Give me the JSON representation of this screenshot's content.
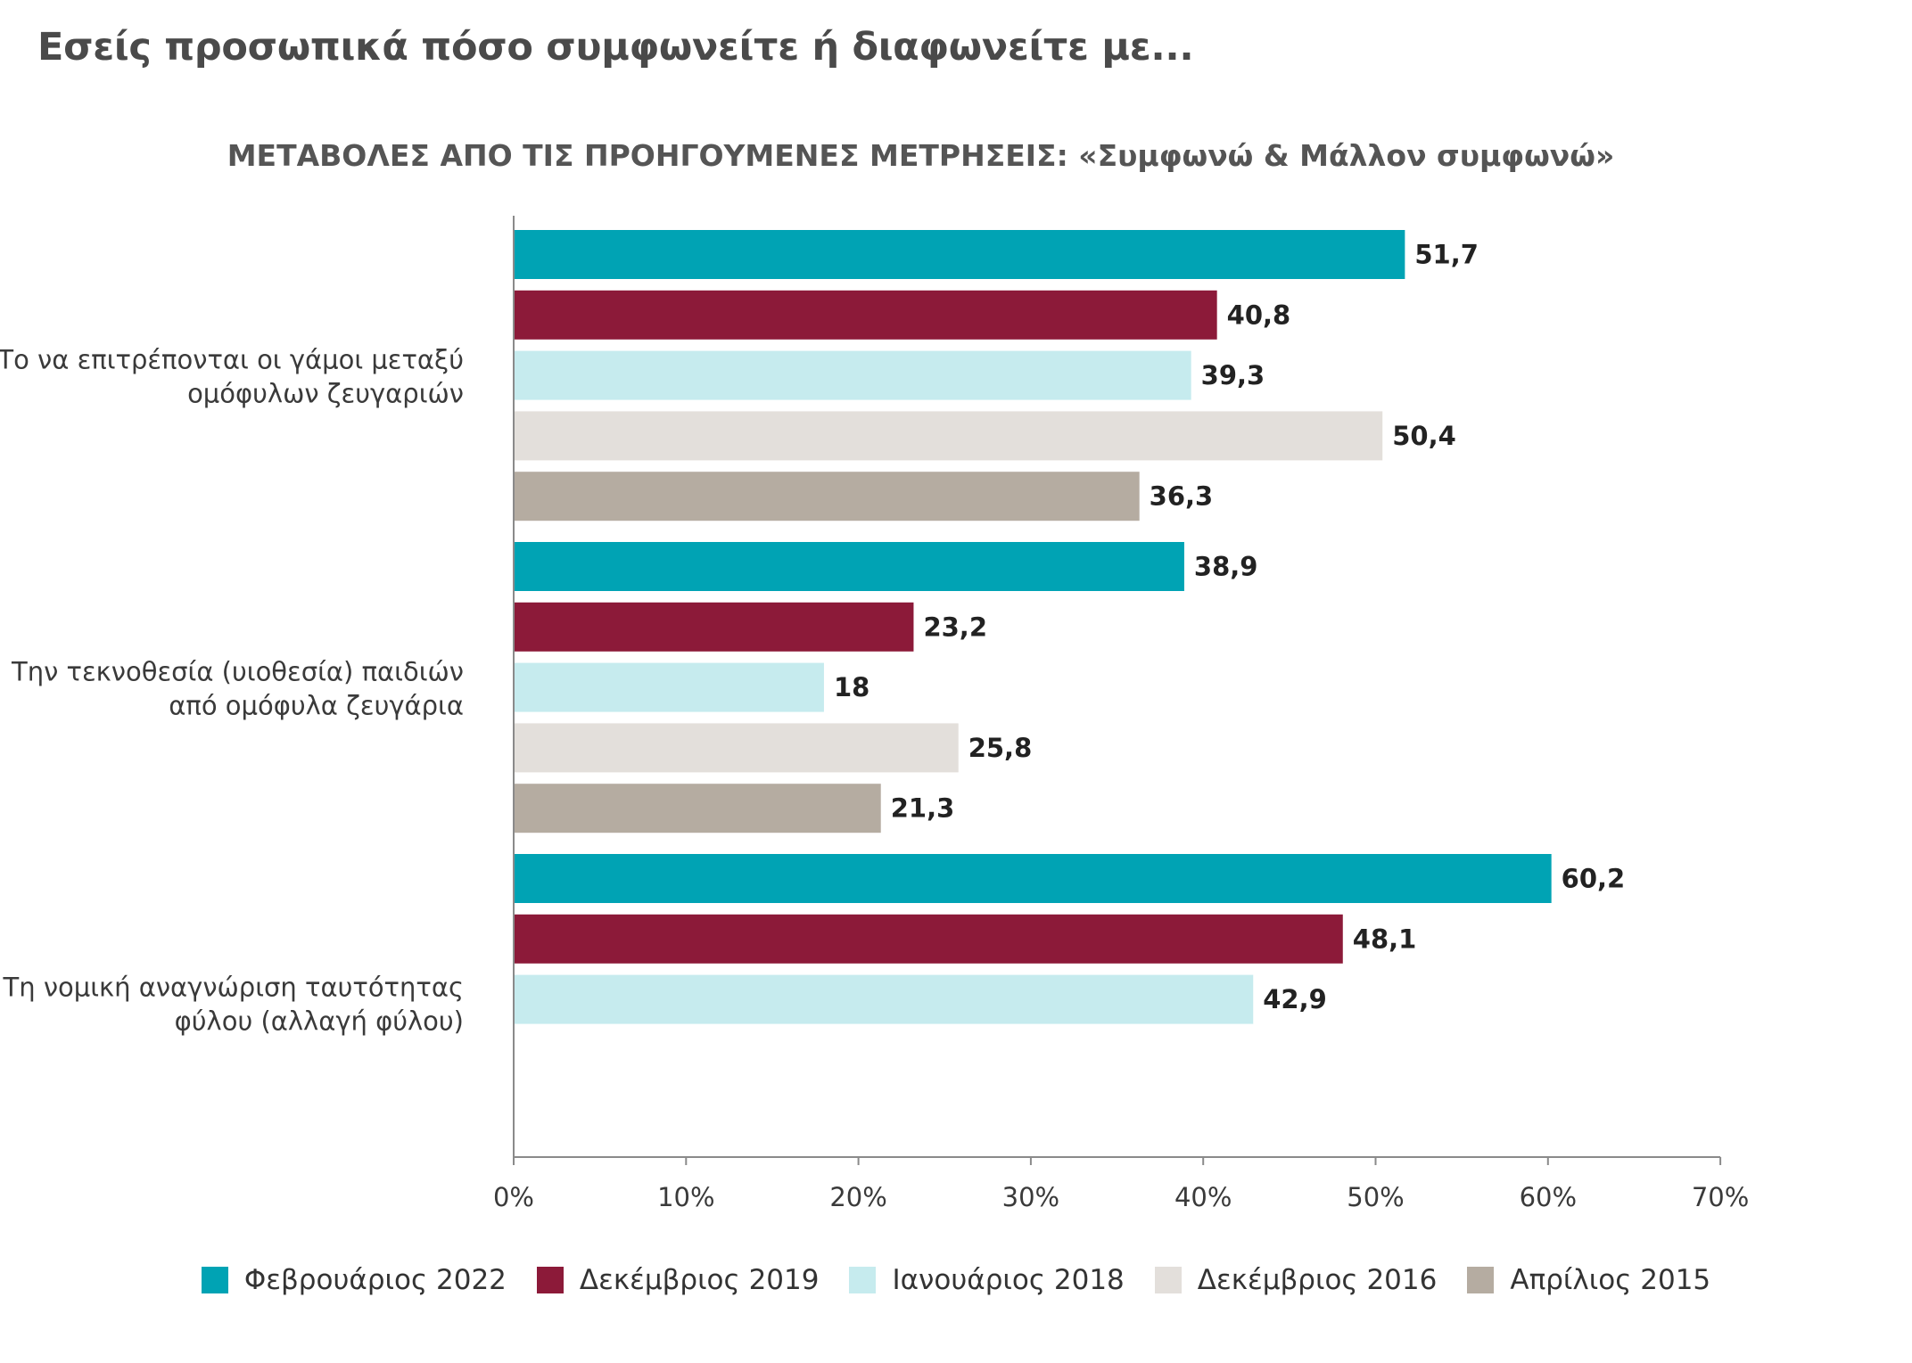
{
  "title": "Εσείς προσωπικά πόσο συμφωνείτε ή διαφωνείτε με...",
  "chart_data": {
    "type": "bar",
    "orientation": "horizontal",
    "title": "ΜΕΤΑΒΟΛΕΣ ΑΠΟ ΤΙΣ ΠΡΟΗΓΟΥΜΕΝΕΣ ΜΕΤΡΗΣΕΙΣ: «Συμφωνώ & Μάλλον συμφωνώ»",
    "categories": [
      [
        "Το να επιτρέπονται οι γάμοι μεταξύ",
        "ομόφυλων ζευγαριών"
      ],
      [
        "Την τεκνοθεσία (υιοθεσία) παιδιών",
        "από ομόφυλα ζευγάρια"
      ],
      [
        "Τη νομική αναγνώριση ταυτότητας",
        "φύλου (αλλαγή φύλου)"
      ]
    ],
    "series": [
      {
        "name": "Φεβρουάριος 2022",
        "color": "#00a3b4",
        "values": [
          51.7,
          38.9,
          60.2
        ],
        "labels": [
          "51,7",
          "38,9",
          "60,2"
        ]
      },
      {
        "name": "Δεκέμβριος 2019",
        "color": "#8c1a39",
        "values": [
          40.8,
          23.2,
          48.1
        ],
        "labels": [
          "40,8",
          "23,2",
          "48,1"
        ]
      },
      {
        "name": "Ιανουάριος 2018",
        "color": "#c6ebee",
        "values": [
          39.3,
          18,
          42.9
        ],
        "labels": [
          "39,3",
          "18",
          "42,9"
        ]
      },
      {
        "name": "Δεκέμβριος 2016",
        "color": "#e3dfdb",
        "values": [
          50.4,
          25.8,
          null
        ],
        "labels": [
          "50,4",
          "25,8",
          null
        ]
      },
      {
        "name": "Απρίλιος 2015",
        "color": "#b5aca1",
        "values": [
          36.3,
          21.3,
          null
        ],
        "labels": [
          "36,3",
          "21,3",
          null
        ]
      }
    ],
    "x_ticks": [
      "0%",
      "10%",
      "20%",
      "30%",
      "40%",
      "50%",
      "60%",
      "70%"
    ],
    "xlim": [
      0,
      70
    ],
    "grid": false,
    "legend_position": "bottom"
  }
}
